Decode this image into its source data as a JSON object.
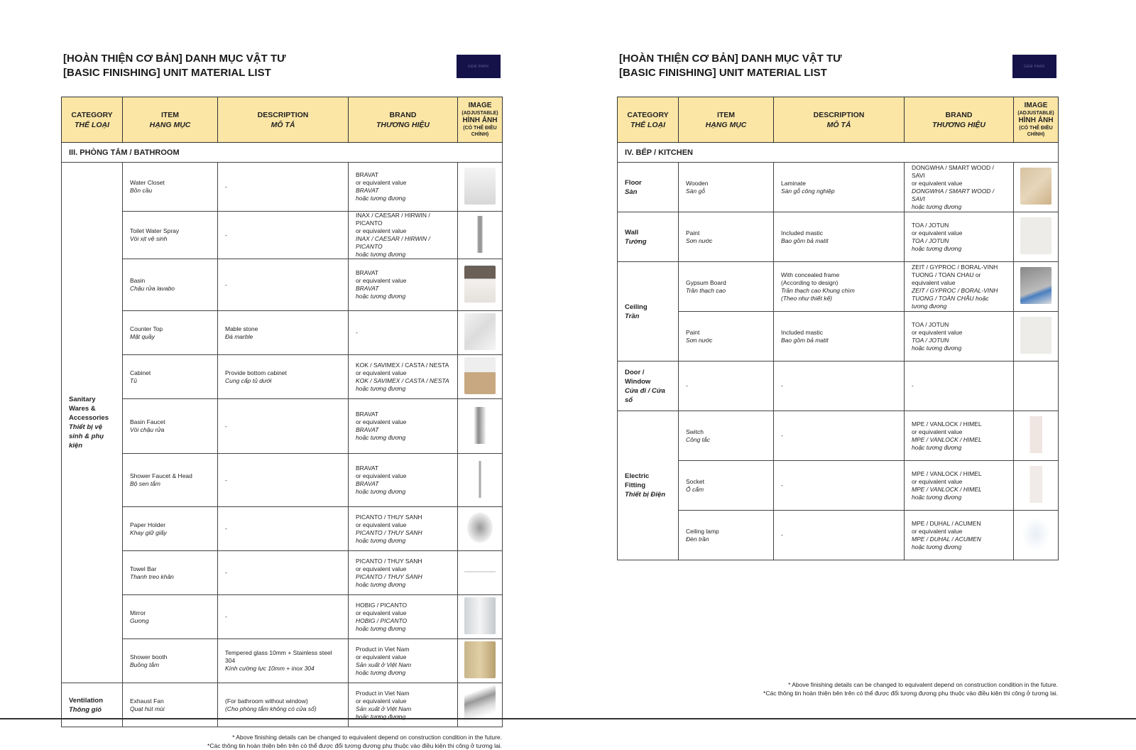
{
  "pages": [
    {
      "title_vi": "[HOÀN THIỆN CƠ BẢN] DANH MỤC VẬT TƯ",
      "title_en": "[BASIC FINISHING] UNIT MATERIAL LIST",
      "logo_text": "GEM PARK",
      "headers": {
        "category": "CATEGORY",
        "category_vi": "THỂ LOẠI",
        "item": "ITEM",
        "item_vi": "HẠNG MỤC",
        "description": "DESCRIPTION",
        "description_vi": "MÔ TẢ",
        "brand": "BRAND",
        "brand_vi": "THƯƠNG HIỆU",
        "image": "IMAGE",
        "image_adj": "(ADJUSTABLE)",
        "image_vi": "HÌNH ẢNH",
        "image_adj_vi": "(CÓ THỂ ĐIỀU CHỈNH)"
      },
      "section": "III. PHÒNG TẮM / BATHROOM",
      "groups": [
        {
          "cat_en": "Sanitary Wares & Accessories",
          "cat_vi": "Thiết bị vệ sinh & phụ kiện",
          "items": [
            {
              "en": "Water Closet",
              "vi": "Bồn cầu",
              "desc_en": "-",
              "desc_vi": "",
              "brand": [
                "BRAVAT",
                "or equivalent value",
                "BRAVAT",
                "hoặc tương đương"
              ],
              "image": "toilet-image"
            },
            {
              "en": "Toilet Water Spray",
              "vi": "Vòi xịt vệ sinh",
              "desc_en": "-",
              "desc_vi": "",
              "brand": [
                "INAX / CAESAR / HIRWIN / PICANTO",
                "or equivalent value",
                "INAX / CAESAR / HIRWIN / PICANTO",
                "hoặc tương đương"
              ],
              "image": "spray-image"
            },
            {
              "en": "Basin",
              "vi": "Chậu rửa lavabo",
              "desc_en": "-",
              "desc_vi": "",
              "brand": [
                "BRAVAT",
                "or equivalent value",
                "BRAVAT",
                "hoặc tương đương"
              ],
              "image": "basin-image"
            },
            {
              "en": "Counter Top",
              "vi": "Mặt quầy",
              "desc_en": "Mable stone",
              "desc_vi": "Đá marble",
              "brand": [
                "-",
                "",
                "",
                ""
              ],
              "image": "marble-image"
            },
            {
              "en": "Cabinet",
              "vi": "Tủ",
              "desc_en": "Provide bottom cabinet",
              "desc_vi": "Cung cấp tủ dưới",
              "brand": [
                "KOK / SAVIMEX / CASTA / NESTA or equivalent value",
                "",
                "KOK / SAVIMEX / CASTA / NESTA",
                "hoặc tương đương"
              ],
              "image": "cabinet-image"
            },
            {
              "en": "Basin Faucet",
              "vi": "Vòi chậu rửa",
              "desc_en": "-",
              "desc_vi": "",
              "brand": [
                "BRAVAT",
                "or equivalent value",
                "BRAVAT",
                "hoặc tương đương"
              ],
              "image": "faucet-image"
            },
            {
              "en": "Shower Faucet & Head",
              "vi": "Bộ sen tắm",
              "desc_en": "-",
              "desc_vi": "",
              "brand": [
                "BRAVAT",
                "or equivalent value",
                "BRAVAT",
                "hoặc tương đương"
              ],
              "image": "shower-image"
            },
            {
              "en": "Paper Holder",
              "vi": "Khay giữ giấy",
              "desc_en": "-",
              "desc_vi": "",
              "brand": [
                "PICANTO / THUY SANH",
                "or equivalent value",
                "PICANTO  / THUY SANH",
                "hoặc tương đương"
              ],
              "image": "paper-holder-image"
            },
            {
              "en": "Towel Bar",
              "vi": "Thanh treo khăn",
              "desc_en": "-",
              "desc_vi": "",
              "brand": [
                "PICANTO / THUY SANH",
                "or equivalent value",
                "PICANTO  / THUY SANH",
                "hoặc tương đương"
              ],
              "image": "towel-bar-image"
            },
            {
              "en": "Mirror",
              "vi": "Gương",
              "desc_en": "-",
              "desc_vi": "",
              "brand": [
                "HOBIG / PICANTO",
                "or equivalent value",
                "HOBIG / PICANTO",
                "hoặc tương đương"
              ],
              "image": "mirror-image"
            },
            {
              "en": "Shower booth",
              "vi": "Buồng tắm",
              "desc_en": "Tempered glass 10mm +  Stainless steel 304",
              "desc_vi": "Kính cường lực 10mm + inox 304",
              "brand": [
                "Product in Viet Nam",
                "or equivalent value",
                "Sản xuất ở Việt Nam",
                "hoặc tương đương"
              ],
              "image": "shower-booth-image"
            }
          ]
        },
        {
          "cat_en": "Ventilation",
          "cat_vi": "Thông gió",
          "items": [
            {
              "en": "Exhaust Fan",
              "vi": "Quạt hút mùi",
              "desc_en": "(For bathroom without window)",
              "desc_vi": "(Cho phòng tắm không có cửa sổ)",
              "brand": [
                "Product in Viet Nam",
                "or equivalent value",
                "Sản xuất ở Việt Nam",
                "hoặc tương đương"
              ],
              "image": "exhaust-fan-image"
            }
          ]
        }
      ],
      "note_en": "* Above finishing details can be changed to equivalent depend on construction condition in the future.",
      "note_vi": "*Các thông tin hoàn thiện bên trên có thể được đổi tương đương phụ thuộc vào điều kiện thi công ở tương lai."
    },
    {
      "title_vi": "[HOÀN THIỆN CƠ BẢN] DANH MỤC VẬT TƯ",
      "title_en": "[BASIC FINISHING] UNIT MATERIAL LIST",
      "logo_text": "GEM PARK",
      "headers": {
        "category": "CATEGORY",
        "category_vi": "THỂ LOẠI",
        "item": "ITEM",
        "item_vi": "HẠNG MỤC",
        "description": "DESCRIPTION",
        "description_vi": "MÔ TẢ",
        "brand": "BRAND",
        "brand_vi": "THƯƠNG HIỆU",
        "image": "IMAGE",
        "image_adj": "(ADJUSTABLE)",
        "image_vi": "HÌNH ẢNH",
        "image_adj_vi": "(CÓ THỂ ĐIỀU CHỈNH)"
      },
      "section": "IV. BẾP / KITCHEN",
      "groups": [
        {
          "cat_en": "Floor",
          "cat_vi": "Sàn",
          "items": [
            {
              "en": "Wooden",
              "vi": "Sàn gỗ",
              "desc_en": "Laminate",
              "desc_vi": "Sàn gỗ công nghiệp",
              "brand": [
                "DONGWHA / SMART WOOD / SAVI",
                "or equivalent value",
                "DONGWHA / SMART WOOD / SAVI",
                "hoặc tương đương"
              ],
              "image": "wood-floor-image"
            }
          ]
        },
        {
          "cat_en": "Wall",
          "cat_vi": "Tường",
          "items": [
            {
              "en": "Paint",
              "vi": "Sơn nước",
              "desc_en": "Included mastic",
              "desc_vi": "Bao gồm bả matit",
              "brand": [
                "TOA / JOTUN",
                "or equivalent value",
                "TOA / JOTUN",
                "hoặc tương đương"
              ],
              "image": "paint-image"
            }
          ]
        },
        {
          "cat_en": "Ceiling",
          "cat_vi": "Trần",
          "items": [
            {
              "en": "Gypsum Board",
              "vi": "Trần thạch cao",
              "desc_en": "With concealed frame\n(According to design)",
              "desc_vi": "Trần thạch cao Khung chìm\n(Theo như thiết kế)",
              "brand": [
                "ZEIT / GYPROC / BORAL-VINH TUONG / TOAN CHAU or equivalent value",
                "",
                "ZEIT / GYPROC / BORAL-VINH TUONG / TOÀN CHÂU hoặc tương đương",
                ""
              ],
              "image": "gypsum-image"
            },
            {
              "en": "Paint",
              "vi": "Sơn nước",
              "desc_en": "Included mastic",
              "desc_vi": "Bao gồm bả matit",
              "brand": [
                "TOA / JOTUN",
                "or equivalent value",
                "TOA / JOTUN",
                "hoặc tương đương"
              ],
              "image": "paint-image"
            }
          ]
        },
        {
          "cat_en": "Door / Window",
          "cat_vi": "Cửa đi / Cửa sổ",
          "items": [
            {
              "en": "-",
              "vi": "",
              "desc_en": "-",
              "desc_vi": "",
              "brand": [
                "-",
                "",
                "",
                ""
              ],
              "image": ""
            }
          ]
        },
        {
          "cat_en": "Electric Fitting",
          "cat_vi": "Thiết bị Điện",
          "items": [
            {
              "en": "Switch",
              "vi": "Công tắc",
              "desc_en": "-",
              "desc_vi": "",
              "brand": [
                "MPE / VANLOCK / HIMEL",
                "or equivalent value",
                "MPE / VANLOCK / HIMEL",
                "hoặc tương đương"
              ],
              "image": "switch-image"
            },
            {
              "en": "Socket",
              "vi": "Ổ cắm",
              "desc_en": "-",
              "desc_vi": "",
              "brand": [
                "MPE / VANLOCK / HIMEL",
                "or equivalent value",
                "MPE / VANLOCK / HIMEL",
                "hoặc tương đương"
              ],
              "image": "socket-image"
            },
            {
              "en": "Ceiling lamp",
              "vi": "Đèn trần",
              "desc_en": "-",
              "desc_vi": "",
              "brand": [
                "MPE / DUHAL / ACUMEN",
                "or equivalent value",
                "MPE / DUHAL / ACUMEN",
                "hoặc tương đương"
              ],
              "image": "ceiling-lamp-image"
            }
          ]
        }
      ],
      "note_en": "* Above finishing details can be changed to equivalent depend on construction condition in the future.",
      "note_vi": "*Các thông tin hoàn thiện bên trên có thể được đổi tương đương phụ thuộc vào điều kiện thi công ở tương lai."
    }
  ],
  "colors": {
    "header_bg": "#fbe6a6",
    "logo_bg": "#15124a"
  }
}
